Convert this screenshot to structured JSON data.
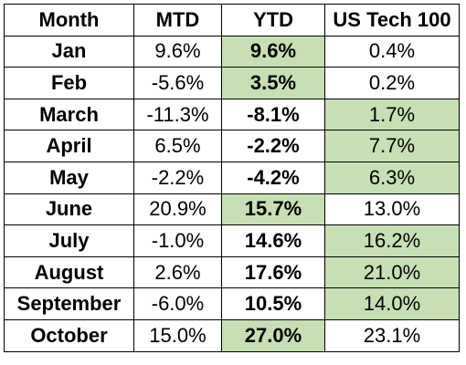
{
  "table": {
    "headers": {
      "month": "Month",
      "mtd": "MTD",
      "ytd": "YTD",
      "tech": "US Tech 100"
    },
    "highlight_color": "#c6e0b4",
    "rows": [
      {
        "month": "Jan",
        "mtd": "9.6%",
        "ytd": "9.6%",
        "tech": "0.4%",
        "ytd_highlight": true,
        "tech_highlight": false
      },
      {
        "month": "Feb",
        "mtd": "-5.6%",
        "ytd": "3.5%",
        "tech": "0.2%",
        "ytd_highlight": true,
        "tech_highlight": false
      },
      {
        "month": "March",
        "mtd": "-11.3%",
        "ytd": "-8.1%",
        "tech": "1.7%",
        "ytd_highlight": false,
        "tech_highlight": true
      },
      {
        "month": "April",
        "mtd": "6.5%",
        "ytd": "-2.2%",
        "tech": "7.7%",
        "ytd_highlight": false,
        "tech_highlight": true
      },
      {
        "month": "May",
        "mtd": "-2.2%",
        "ytd": "-4.2%",
        "tech": "6.3%",
        "ytd_highlight": false,
        "tech_highlight": true
      },
      {
        "month": "June",
        "mtd": "20.9%",
        "ytd": "15.7%",
        "tech": "13.0%",
        "ytd_highlight": true,
        "tech_highlight": false
      },
      {
        "month": "July",
        "mtd": "-1.0%",
        "ytd": "14.6%",
        "tech": "16.2%",
        "ytd_highlight": false,
        "tech_highlight": true
      },
      {
        "month": "August",
        "mtd": "2.6%",
        "ytd": "17.6%",
        "tech": "21.0%",
        "ytd_highlight": false,
        "tech_highlight": true
      },
      {
        "month": "September",
        "mtd": "-6.0%",
        "ytd": "10.5%",
        "tech": "14.0%",
        "ytd_highlight": false,
        "tech_highlight": true
      },
      {
        "month": "October",
        "mtd": "15.0%",
        "ytd": "27.0%",
        "tech": "23.1%",
        "ytd_highlight": true,
        "tech_highlight": false
      }
    ]
  }
}
